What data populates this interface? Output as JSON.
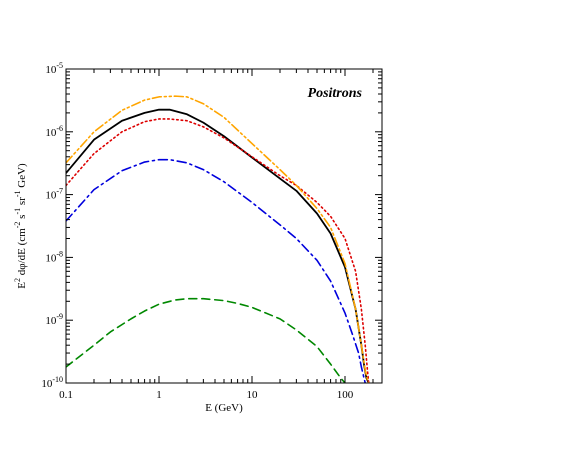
{
  "chart_data": {
    "type": "line",
    "title": "",
    "xlabel": "E (GeV)",
    "ylabel_parts": [
      "E",
      "2",
      " dφ/dE   (cm",
      "-2",
      " s",
      "-1",
      " sr",
      "-1",
      " GeV)"
    ],
    "x_scale": "log",
    "y_scale": "log",
    "xlim": [
      0.1,
      250
    ],
    "ylim": [
      1e-10,
      1e-05
    ],
    "x_ticks": [
      {
        "value": 0.1,
        "label": "0.1"
      },
      {
        "value": 1,
        "label": "1"
      },
      {
        "value": 10,
        "label": "10"
      },
      {
        "value": 100,
        "label": "100"
      }
    ],
    "y_ticks": [
      {
        "value": 1e-10,
        "base": "10",
        "exp": "-10"
      },
      {
        "value": 1e-09,
        "base": "10",
        "exp": "-9"
      },
      {
        "value": 1e-08,
        "base": "10",
        "exp": "-8"
      },
      {
        "value": 1e-07,
        "base": "10",
        "exp": "-7"
      },
      {
        "value": 1e-06,
        "base": "10",
        "exp": "-6"
      },
      {
        "value": 1e-05,
        "base": "10",
        "exp": "-5"
      }
    ],
    "grid": false,
    "legend": "none",
    "annotation": "Positrons",
    "series": [
      {
        "style": "solid",
        "color": "#000000",
        "x": [
          0.1,
          0.2,
          0.4,
          0.7,
          1.0,
          1.3,
          2.0,
          3.0,
          5.0,
          10,
          20,
          30,
          50,
          70,
          100,
          130,
          150,
          160,
          170,
          180
        ],
        "y": [
          2.2e-07,
          7.5e-07,
          1.5e-06,
          2e-06,
          2.25e-06,
          2.25e-06,
          1.9e-06,
          1.4e-06,
          8.5e-07,
          3.9e-07,
          1.8e-07,
          1.15e-07,
          5e-08,
          2.4e-08,
          7e-09,
          1.5e-09,
          4e-10,
          2e-10,
          1.2e-10,
          1e-10
        ]
      },
      {
        "style": "dotted",
        "color": "#dd0000",
        "x": [
          0.1,
          0.2,
          0.4,
          0.7,
          1.0,
          1.3,
          2.0,
          3.0,
          5.0,
          10,
          20,
          30,
          50,
          70,
          100,
          130,
          150,
          165,
          175,
          180
        ],
        "y": [
          1.4e-07,
          4.5e-07,
          1e-06,
          1.45e-06,
          1.6e-06,
          1.6e-06,
          1.5e-06,
          1.2e-06,
          8e-07,
          4e-07,
          2e-07,
          1.4e-07,
          7.5e-08,
          4.5e-08,
          2e-08,
          6e-09,
          1.5e-09,
          4e-10,
          1.5e-10,
          1e-10
        ]
      },
      {
        "style": "dash-dot",
        "color": "#0000dd",
        "x": [
          0.1,
          0.2,
          0.4,
          0.7,
          1.0,
          1.3,
          2.0,
          3.0,
          5.0,
          10,
          20,
          30,
          50,
          70,
          100,
          120,
          140,
          150,
          160,
          165
        ],
        "y": [
          3.8e-08,
          1.2e-07,
          2.4e-07,
          3.3e-07,
          3.6e-07,
          3.6e-07,
          3.2e-07,
          2.5e-07,
          1.6e-07,
          7.5e-08,
          3.3e-08,
          2e-08,
          9e-09,
          4.2e-09,
          1.3e-09,
          6e-10,
          3e-10,
          1.8e-10,
          1.2e-10,
          1e-10
        ]
      },
      {
        "style": "dashed",
        "color": "#008800",
        "x": [
          0.1,
          0.2,
          0.3,
          0.5,
          0.7,
          1.0,
          1.5,
          2.0,
          3.0,
          5.0,
          7.0,
          10,
          20,
          30,
          50,
          70,
          90,
          100
        ],
        "y": [
          1.8e-10,
          4e-10,
          6.5e-10,
          1.05e-09,
          1.4e-09,
          1.8e-09,
          2.1e-09,
          2.2e-09,
          2.2e-09,
          2.05e-09,
          1.85e-09,
          1.6e-09,
          1.05e-09,
          7e-10,
          3.8e-10,
          2e-10,
          1.2e-10,
          1e-10
        ]
      },
      {
        "style": "dash-dot-dot",
        "color": "#ffa500",
        "x": [
          0.1,
          0.2,
          0.4,
          0.7,
          1.0,
          1.5,
          2.0,
          3.0,
          5.0,
          10,
          20,
          30,
          50,
          70,
          100,
          130,
          150,
          165,
          175,
          180
        ],
        "y": [
          3.2e-07,
          1e-06,
          2.2e-06,
          3.2e-06,
          3.6e-06,
          3.7e-06,
          3.6e-06,
          2.8e-06,
          1.7e-06,
          6.5e-07,
          2.5e-07,
          1.4e-07,
          6e-08,
          3e-08,
          8e-09,
          1.5e-09,
          4e-10,
          1.6e-10,
          1.1e-10,
          1e-10
        ]
      }
    ]
  }
}
